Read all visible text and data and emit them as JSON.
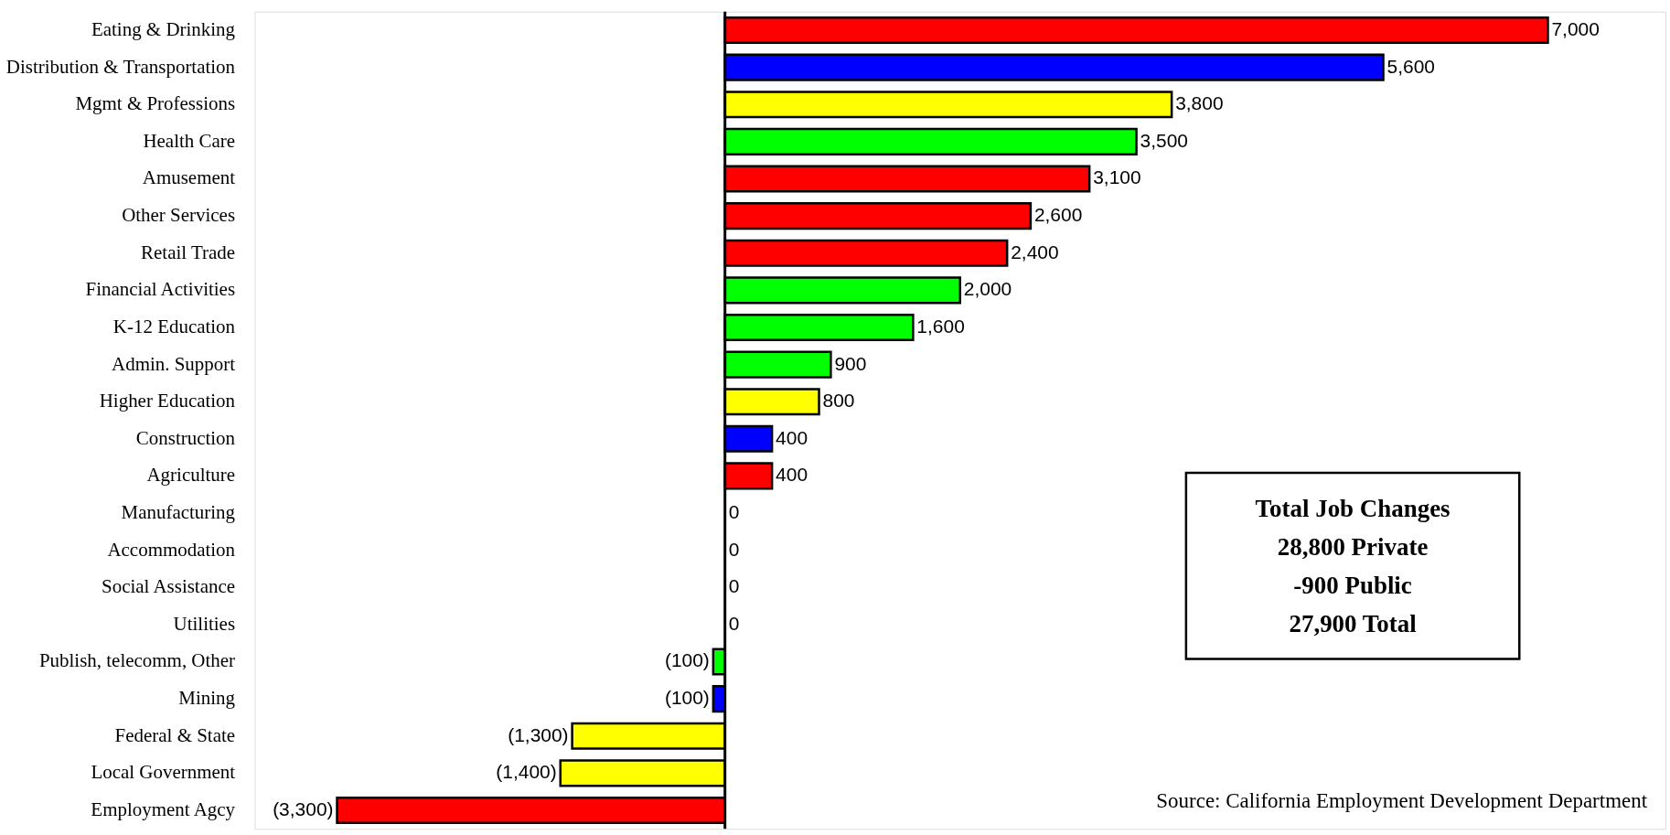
{
  "chart_data": {
    "type": "bar",
    "orientation": "horizontal",
    "categories": [
      "Eating & Drinking",
      "Distribution & Transportation",
      "Mgmt & Professions",
      "Health Care",
      "Amusement",
      "Other Services",
      "Retail Trade",
      "Financial Activities",
      "K-12 Education",
      "Admin. Support",
      "Higher Education",
      "Construction",
      "Agriculture",
      "Manufacturing",
      "Accommodation",
      "Social Assistance",
      "Utilities",
      "Publish, telecomm, Other",
      "Mining",
      "Federal & State",
      "Local Government",
      "Employment Agcy"
    ],
    "values": [
      7000,
      5600,
      3800,
      3500,
      3100,
      2600,
      2400,
      2000,
      1600,
      900,
      800,
      400,
      400,
      0,
      0,
      0,
      0,
      -100,
      -100,
      -1300,
      -1400,
      -3300
    ],
    "colors": [
      "#ff0000",
      "#0000ff",
      "#ffff00",
      "#00ff00",
      "#ff0000",
      "#ff0000",
      "#ff0000",
      "#00ff00",
      "#00ff00",
      "#00ff00",
      "#ffff00",
      "#0000ff",
      "#ff0000",
      "#00ff00",
      "#00ff00",
      "#00ff00",
      "#00ff00",
      "#00ff00",
      "#0000ff",
      "#ffff00",
      "#ffff00",
      "#ff0000"
    ],
    "value_labels": [
      "7,000",
      "5,600",
      "3,800",
      "3,500",
      "3,100",
      "2,600",
      "2,400",
      "2,000",
      "1,600",
      "900",
      "800",
      "400",
      "400",
      "0",
      "0",
      "0",
      "0",
      "(100)",
      "(100)",
      "(1,300)",
      "(1,400)",
      "(3,300)"
    ],
    "xlim": [
      -4000,
      8000
    ],
    "annotations": [
      "Total Job Changes",
      "28,800 Private",
      "-900 Public",
      "27,900 Total",
      "Source:  California Employment Development Department"
    ]
  }
}
